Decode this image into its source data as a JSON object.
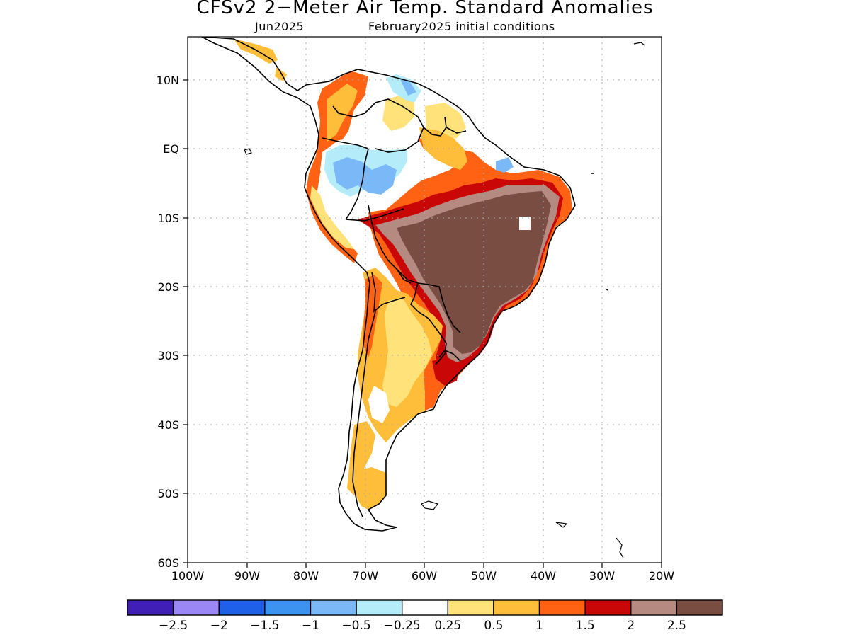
{
  "title": "CFSv2 2−Meter Air Temp. Standard Anomalies",
  "subtitle_left": "Jun2025",
  "subtitle_right": "February2025 initial conditions",
  "lat_ticks": [
    "10N",
    "EQ",
    "10S",
    "20S",
    "30S",
    "40S",
    "50S",
    "60S"
  ],
  "lon_ticks": [
    "100W",
    "90W",
    "80W",
    "70W",
    "60W",
    "50W",
    "40W",
    "30W",
    "20W"
  ],
  "colorbar": {
    "colors": [
      "#3f1fb5",
      "#9b87f5",
      "#1f60e8",
      "#3d93f0",
      "#7ab8f7",
      "#b4edf9",
      "#ffffff",
      "#ffe27a",
      "#ffbe3a",
      "#ff6213",
      "#c90707",
      "#b58a80",
      "#7a4d43"
    ],
    "labels": [
      "−2.5",
      "−2",
      "−1.5",
      "−1",
      "−0.5",
      "−0.25",
      "0.25",
      "0.5",
      "1",
      "1.5",
      "2",
      "2.5"
    ]
  },
  "legend_icon": "colorbar-scale"
}
